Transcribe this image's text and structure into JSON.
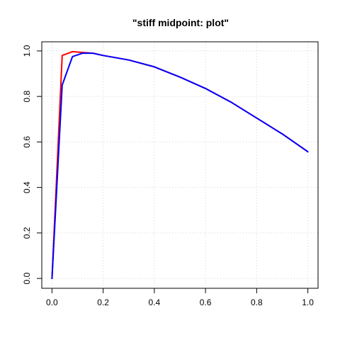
{
  "chart_data": {
    "type": "line",
    "title": "\"stiff midpoint: plot\"",
    "xlabel": "",
    "ylabel": "",
    "xlim": [
      0,
      1
    ],
    "ylim": [
      0,
      1
    ],
    "x_ticks": [
      0.0,
      0.2,
      0.4,
      0.6,
      0.8,
      1.0
    ],
    "x_tick_labels": [
      "0.0",
      "0.2",
      "0.4",
      "0.6",
      "0.8",
      "1.0"
    ],
    "y_ticks": [
      0.0,
      0.2,
      0.4,
      0.6,
      0.8,
      1.0
    ],
    "y_tick_labels": [
      "0.0",
      "0.2",
      "0.4",
      "0.6",
      "0.8",
      "1.0"
    ],
    "grid": true,
    "series": [
      {
        "color": "#ff0000",
        "x": [
          0,
          0.04,
          0.08,
          0.12,
          0.16,
          0.2,
          0.3,
          0.4,
          0.5,
          0.6,
          0.7,
          0.8,
          0.9,
          1.0
        ],
        "y": [
          0,
          0.98,
          0.997,
          0.993,
          0.99,
          0.98,
          0.96,
          0.93,
          0.885,
          0.835,
          0.775,
          0.705,
          0.635,
          0.557
        ]
      },
      {
        "color": "#0000ff",
        "x": [
          0,
          0.04,
          0.08,
          0.12,
          0.16,
          0.2,
          0.3,
          0.4,
          0.5,
          0.6,
          0.7,
          0.8,
          0.9,
          1.0
        ],
        "y": [
          0,
          0.85,
          0.975,
          0.99,
          0.99,
          0.98,
          0.96,
          0.93,
          0.885,
          0.835,
          0.775,
          0.705,
          0.635,
          0.557
        ]
      }
    ]
  }
}
